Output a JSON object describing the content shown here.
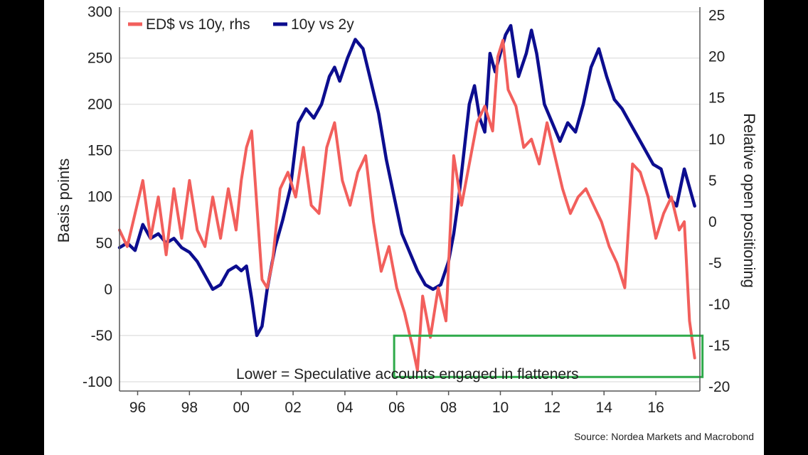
{
  "chart_data": {
    "type": "line",
    "title": "",
    "ylabel": "Basis points",
    "ylabel_right": "Relative open positioning",
    "ylim": [
      -110,
      305
    ],
    "ylim_right": [
      -20.5,
      26
    ],
    "xlim": [
      1995.3,
      2017.7
    ],
    "x_ticks": [
      1996,
      1998,
      2000,
      2002,
      2004,
      2006,
      2008,
      2010,
      2012,
      2014,
      2016
    ],
    "x_tick_labels": [
      "96",
      "98",
      "00",
      "02",
      "04",
      "06",
      "08",
      "10",
      "12",
      "14",
      "16"
    ],
    "y_ticks_left": [
      300,
      250,
      200,
      150,
      100,
      50,
      0,
      -50,
      -100
    ],
    "y_tick_labels_left": [
      "300",
      "250",
      "200",
      "150",
      "100",
      "50",
      "0",
      "-50",
      "-100"
    ],
    "y_ticks_right": [
      25,
      20,
      15,
      10,
      5,
      0,
      -5,
      -10,
      -15,
      -20
    ],
    "y_tick_labels_right": [
      "25",
      "20",
      "15",
      "10",
      "5",
      "0",
      "-5",
      "-10",
      "-15",
      "-20"
    ],
    "legend_position": "top-left",
    "grid": true,
    "series": [
      {
        "name": "ED$ vs 10y, rhs",
        "axis": "right",
        "color": "#f25f5c",
        "x": [
          1995.3,
          1995.6,
          1995.9,
          1996.2,
          1996.5,
          1996.8,
          1997.1,
          1997.4,
          1997.7,
          1998.0,
          1998.3,
          1998.6,
          1998.9,
          1999.2,
          1999.5,
          1999.8,
          2000.0,
          2000.2,
          2000.4,
          2000.6,
          2000.8,
          2001.0,
          2001.2,
          2001.5,
          2001.8,
          2002.1,
          2002.4,
          2002.7,
          2003.0,
          2003.3,
          2003.6,
          2003.9,
          2004.2,
          2004.5,
          2004.8,
          2005.1,
          2005.4,
          2005.7,
          2006.0,
          2006.3,
          2006.6,
          2006.8,
          2007.0,
          2007.3,
          2007.6,
          2007.9,
          2008.2,
          2008.5,
          2008.8,
          2009.1,
          2009.4,
          2009.7,
          2009.9,
          2010.1,
          2010.3,
          2010.6,
          2010.9,
          2011.2,
          2011.5,
          2011.8,
          2012.1,
          2012.4,
          2012.7,
          2013.0,
          2013.3,
          2013.6,
          2013.9,
          2014.2,
          2014.5,
          2014.8,
          2015.1,
          2015.4,
          2015.7,
          2016.0,
          2016.3,
          2016.6,
          2016.9,
          2017.1,
          2017.3,
          2017.5
        ],
        "values": [
          -1,
          -3,
          1,
          5,
          -2,
          3,
          -4,
          4,
          -2,
          5,
          -1,
          -3,
          3,
          -2,
          4,
          -1,
          5,
          9,
          11,
          2,
          -7,
          -8,
          -5,
          4,
          6,
          3,
          9,
          2,
          1,
          9,
          12,
          5,
          2,
          6,
          8,
          0,
          -6,
          -3,
          -8,
          -11,
          -15,
          -18,
          -9,
          -14,
          -8,
          -12,
          8,
          2,
          7,
          12,
          14,
          11,
          20,
          22,
          16,
          14,
          9,
          10,
          7,
          12,
          8,
          4,
          1,
          3,
          4,
          2,
          0,
          -3,
          -5,
          -8,
          7,
          6,
          3,
          -2,
          1,
          3,
          -1,
          0,
          -12,
          -16.5
        ]
      },
      {
        "name": "10y vs 2y",
        "axis": "left",
        "color": "#0c0d8f",
        "x": [
          1995.3,
          1995.6,
          1995.9,
          1996.2,
          1996.5,
          1996.8,
          1997.1,
          1997.4,
          1997.7,
          1998.0,
          1998.3,
          1998.6,
          1998.9,
          1999.2,
          1999.5,
          1999.8,
          2000.0,
          2000.2,
          2000.4,
          2000.6,
          2000.8,
          2001.0,
          2001.3,
          2001.6,
          2001.9,
          2002.2,
          2002.5,
          2002.8,
          2003.1,
          2003.4,
          2003.6,
          2003.8,
          2004.1,
          2004.4,
          2004.7,
          2005.0,
          2005.3,
          2005.6,
          2005.9,
          2006.2,
          2006.5,
          2006.8,
          2007.1,
          2007.4,
          2007.7,
          2008.0,
          2008.2,
          2008.4,
          2008.6,
          2008.8,
          2009.0,
          2009.2,
          2009.4,
          2009.6,
          2009.8,
          2010.0,
          2010.2,
          2010.4,
          2010.7,
          2011.0,
          2011.2,
          2011.4,
          2011.7,
          2012.0,
          2012.3,
          2012.6,
          2012.9,
          2013.2,
          2013.5,
          2013.8,
          2014.1,
          2014.4,
          2014.7,
          2015.0,
          2015.3,
          2015.6,
          2015.9,
          2016.2,
          2016.5,
          2016.8,
          2017.1,
          2017.3,
          2017.5
        ],
        "values": [
          45,
          50,
          42,
          70,
          55,
          60,
          50,
          55,
          45,
          40,
          30,
          15,
          0,
          5,
          20,
          25,
          20,
          25,
          -10,
          -50,
          -40,
          0,
          45,
          75,
          110,
          180,
          195,
          185,
          200,
          230,
          240,
          225,
          250,
          270,
          260,
          225,
          190,
          140,
          100,
          60,
          40,
          20,
          5,
          0,
          5,
          30,
          60,
          100,
          150,
          200,
          220,
          185,
          170,
          255,
          235,
          255,
          275,
          285,
          230,
          255,
          280,
          255,
          200,
          180,
          160,
          180,
          170,
          200,
          240,
          260,
          230,
          205,
          195,
          180,
          165,
          150,
          135,
          130,
          100,
          90,
          130,
          110,
          90
        ]
      }
    ],
    "annotations": [
      {
        "text": "Lower = Speculative accounts engaged in flatteners",
        "box_color": "#2eaa4a",
        "box_x_range": [
          2005.9,
          2017.8
        ],
        "box_y_range_right": [
          -18.8,
          -13.8
        ]
      }
    ]
  },
  "legend": {
    "item1_label": "ED$ vs 10y, rhs",
    "item2_label": "10y vs 2y"
  },
  "source_text": "Source: Nordea Markets and Macrobond"
}
